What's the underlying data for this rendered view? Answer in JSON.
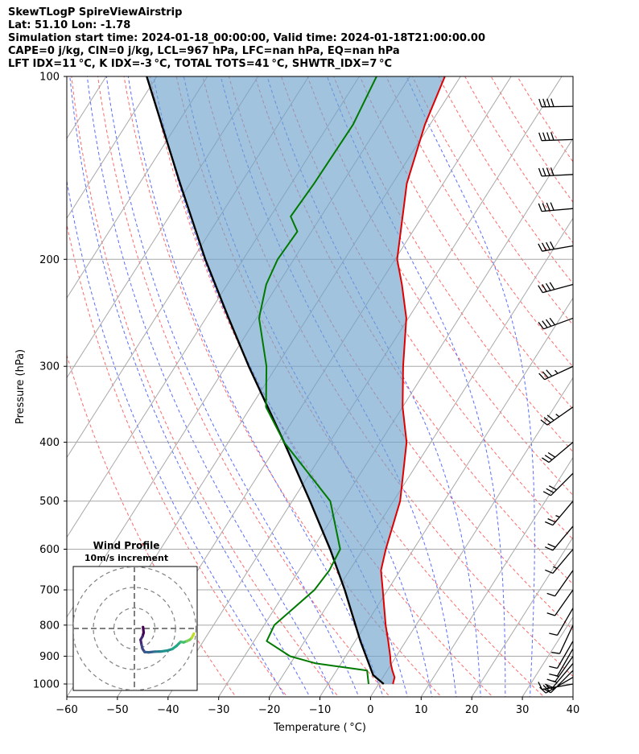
{
  "header": {
    "line1": "SkewTLogP SpireViewAirstrip",
    "line2": "Lat: 51.10   Lon: -1.78",
    "line3": "Simulation start time: 2024-01-18_00:00:00, Valid time: 2024-01-18T21:00:00.00",
    "line4": "CAPE=0 j/kg, CIN=0 j/kg, LCL=967 hPa, LFC=nan hPa, EQ=nan hPa",
    "line5": "LFT IDX=11 °C, K IDX=-3 °C, TOTAL TOTS=41 °C, SHWTR_IDX=7 °C"
  },
  "chart_data": {
    "type": "skew-t log-p",
    "xlabel": "Temperature ( °C)",
    "ylabel": "Pressure (hPa)",
    "xlim": [
      -60,
      40
    ],
    "ylim": [
      1050,
      100
    ],
    "x_ticks": [
      -60,
      -50,
      -40,
      -30,
      -20,
      -10,
      0,
      10,
      20,
      30,
      40
    ],
    "x_tick_labels": [
      "−60",
      "−50",
      "−40",
      "−30",
      "−20",
      "−10",
      "0",
      "10",
      "20",
      "30",
      "40"
    ],
    "y_ticks": [
      100,
      200,
      300,
      400,
      500,
      600,
      700,
      800,
      900,
      1000
    ],
    "y_tick_labels": [
      "100",
      "200",
      "300",
      "400",
      "500",
      "600",
      "700",
      "800",
      "900",
      "1000"
    ],
    "temperature": [
      [
        1000,
        2.8
      ],
      [
        975,
        2.3
      ],
      [
        950,
        1.0
      ],
      [
        925,
        -0.2
      ],
      [
        900,
        -1.2
      ],
      [
        850,
        -3.5
      ],
      [
        800,
        -6.0
      ],
      [
        700,
        -11.0
      ],
      [
        650,
        -13.8
      ],
      [
        600,
        -15.5
      ],
      [
        500,
        -18.7
      ],
      [
        400,
        -24.8
      ],
      [
        350,
        -30.0
      ],
      [
        300,
        -35.0
      ],
      [
        250,
        -40.4
      ],
      [
        220,
        -45.5
      ],
      [
        200,
        -49.6
      ],
      [
        150,
        -57.2
      ],
      [
        120,
        -61.0
      ],
      [
        100,
        -63.1
      ]
    ],
    "dewpoint": [
      [
        1000,
        -2.0
      ],
      [
        950,
        -4.0
      ],
      [
        925,
        -15.0
      ],
      [
        900,
        -21.0
      ],
      [
        850,
        -27.5
      ],
      [
        800,
        -28.0
      ],
      [
        700,
        -24.5
      ],
      [
        650,
        -24.0
      ],
      [
        600,
        -24.5
      ],
      [
        500,
        -32.5
      ],
      [
        400,
        -49.0
      ],
      [
        350,
        -57.0
      ],
      [
        300,
        -62.0
      ],
      [
        250,
        -69.5
      ],
      [
        220,
        -72.3
      ],
      [
        200,
        -73.2
      ],
      [
        180,
        -72.8
      ],
      [
        170,
        -76.0
      ],
      [
        150,
        -75.5
      ],
      [
        120,
        -75.2
      ],
      [
        100,
        -76.6
      ]
    ],
    "parcel": [
      [
        1000,
        1.0
      ],
      [
        967,
        -2.2
      ],
      [
        850,
        -9.0
      ],
      [
        700,
        -18.5
      ],
      [
        600,
        -26.5
      ],
      [
        500,
        -36.5
      ],
      [
        400,
        -49.0
      ],
      [
        300,
        -65.5
      ],
      [
        250,
        -75.5
      ],
      [
        200,
        -87.5
      ],
      [
        150,
        -102.0
      ],
      [
        100,
        -122.0
      ]
    ],
    "wind_barbs": [
      {
        "p": 1000,
        "speed_kt": 15,
        "dir_deg": 100
      },
      {
        "p": 975,
        "speed_kt": 20,
        "dir_deg": 120
      },
      {
        "p": 950,
        "speed_kt": 20,
        "dir_deg": 135
      },
      {
        "p": 925,
        "speed_kt": 15,
        "dir_deg": 140
      },
      {
        "p": 900,
        "speed_kt": 15,
        "dir_deg": 145
      },
      {
        "p": 875,
        "speed_kt": 10,
        "dir_deg": 150
      },
      {
        "p": 850,
        "speed_kt": 10,
        "dir_deg": 150
      },
      {
        "p": 800,
        "speed_kt": 10,
        "dir_deg": 155
      },
      {
        "p": 750,
        "speed_kt": 10,
        "dir_deg": 150
      },
      {
        "p": 700,
        "speed_kt": 10,
        "dir_deg": 145
      },
      {
        "p": 650,
        "speed_kt": 10,
        "dir_deg": 145
      },
      {
        "p": 600,
        "speed_kt": 15,
        "dir_deg": 140
      },
      {
        "p": 550,
        "speed_kt": 20,
        "dir_deg": 140
      },
      {
        "p": 500,
        "speed_kt": 25,
        "dir_deg": 140
      },
      {
        "p": 450,
        "speed_kt": 30,
        "dir_deg": 135
      },
      {
        "p": 400,
        "speed_kt": 30,
        "dir_deg": 130
      },
      {
        "p": 350,
        "speed_kt": 35,
        "dir_deg": 125
      },
      {
        "p": 300,
        "speed_kt": 35,
        "dir_deg": 115
      },
      {
        "p": 250,
        "speed_kt": 40,
        "dir_deg": 110
      },
      {
        "p": 220,
        "speed_kt": 40,
        "dir_deg": 105
      },
      {
        "p": 190,
        "speed_kt": 40,
        "dir_deg": 100
      },
      {
        "p": 165,
        "speed_kt": 40,
        "dir_deg": 95
      },
      {
        "p": 145,
        "speed_kt": 40,
        "dir_deg": 93
      },
      {
        "p": 127,
        "speed_kt": 40,
        "dir_deg": 92
      },
      {
        "p": 112,
        "speed_kt": 40,
        "dir_deg": 91
      }
    ],
    "hodograph": {
      "title": "Wind Profile",
      "subtitle": "10m/s increment",
      "rings_ms": [
        10,
        20,
        30
      ],
      "u_range": [
        -30,
        30
      ],
      "v_range": [
        -30,
        30
      ],
      "points_uv": [
        [
          4.2,
          0.7
        ],
        [
          4.5,
          -2.0
        ],
        [
          4.0,
          -3.8
        ],
        [
          3.0,
          -5.5
        ],
        [
          3.5,
          -8.0
        ],
        [
          4.0,
          -10.0
        ],
        [
          5.0,
          -11.5
        ],
        [
          7.0,
          -11.6
        ],
        [
          10.0,
          -11.3
        ],
        [
          13.0,
          -11.2
        ],
        [
          16.0,
          -10.8
        ],
        [
          18.5,
          -10.0
        ],
        [
          20.5,
          -8.5
        ],
        [
          22.5,
          -6.5
        ],
        [
          24.0,
          -6.8
        ],
        [
          25.5,
          -6.2
        ],
        [
          27.0,
          -5.5
        ],
        [
          28.0,
          -4.5
        ],
        [
          29.0,
          -2.5
        ]
      ],
      "colormap": "viridis"
    }
  }
}
